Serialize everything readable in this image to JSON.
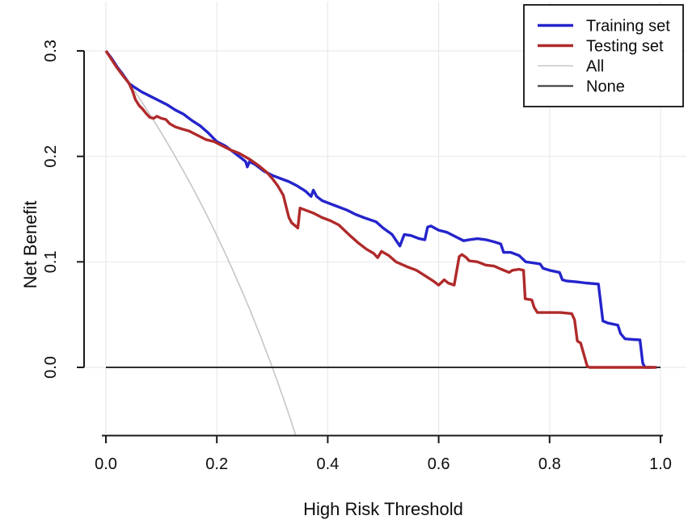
{
  "figure": {
    "background": "#ffffff",
    "grid_color": "#e9e9e9",
    "axis_color": "#1a1a1a",
    "text_color": "#0c0c0c"
  },
  "legend": {
    "position": "top-right",
    "items": [
      {
        "label": "Training set",
        "color": "#2424cc",
        "line_width": 3.4
      },
      {
        "label": "Testing set",
        "color": "#b02a2a",
        "line_width": 3.4
      },
      {
        "label": "All",
        "color": "#c6c6c6",
        "line_width": 1.6
      },
      {
        "label": "None",
        "color": "#2e2e2e",
        "line_width": 2.0
      }
    ]
  },
  "chart_data": {
    "type": "line",
    "title": "",
    "xlabel": "High Risk Threshold",
    "ylabel": "Net Benefit",
    "xlim": [
      0.0,
      1.0
    ],
    "ylim": [
      -0.064,
      0.34
    ],
    "x_tick_values": [
      0.0,
      0.2,
      0.4,
      0.6,
      0.8,
      1.0
    ],
    "x_tick_labels": [
      "0.0",
      "0.2",
      "0.4",
      "0.6",
      "0.8",
      "1.0"
    ],
    "y_tick_values": [
      0.0,
      0.1,
      0.2,
      0.3
    ],
    "y_tick_labels": [
      "0.0",
      "0.1",
      "0.2",
      "0.3"
    ],
    "grid": true,
    "legend_position": "top-right",
    "series": [
      {
        "name": "All",
        "color": "#c6c6c6",
        "width": 1.6,
        "points": [
          [
            0.0,
            0.3
          ],
          [
            0.02,
            0.2857
          ],
          [
            0.04,
            0.2708
          ],
          [
            0.06,
            0.2553
          ],
          [
            0.08,
            0.2391
          ],
          [
            0.1,
            0.2222
          ],
          [
            0.12,
            0.2045
          ],
          [
            0.14,
            0.186
          ],
          [
            0.16,
            0.1667
          ],
          [
            0.18,
            0.1463
          ],
          [
            0.2,
            0.125
          ],
          [
            0.22,
            0.1026
          ],
          [
            0.24,
            0.0789
          ],
          [
            0.26,
            0.0541
          ],
          [
            0.28,
            0.0278
          ],
          [
            0.3,
            0.0
          ],
          [
            0.31,
            -0.0145
          ],
          [
            0.32,
            -0.0294
          ],
          [
            0.33,
            -0.0448
          ],
          [
            0.342,
            -0.064
          ]
        ]
      },
      {
        "name": "None",
        "color": "#2e2e2e",
        "width": 2.0,
        "points": [
          [
            0.0,
            0.0
          ],
          [
            1.0,
            0.0
          ]
        ]
      },
      {
        "name": "Training set",
        "color": "#2424cc",
        "width": 3.4,
        "points": [
          [
            0.0,
            0.3
          ],
          [
            0.01,
            0.293
          ],
          [
            0.02,
            0.285
          ],
          [
            0.03,
            0.278
          ],
          [
            0.042,
            0.269
          ],
          [
            0.05,
            0.266
          ],
          [
            0.065,
            0.261
          ],
          [
            0.08,
            0.257
          ],
          [
            0.095,
            0.253
          ],
          [
            0.11,
            0.249
          ],
          [
            0.125,
            0.244
          ],
          [
            0.14,
            0.24
          ],
          [
            0.155,
            0.234
          ],
          [
            0.17,
            0.229
          ],
          [
            0.185,
            0.222
          ],
          [
            0.2,
            0.214
          ],
          [
            0.215,
            0.21
          ],
          [
            0.23,
            0.204
          ],
          [
            0.245,
            0.198
          ],
          [
            0.252,
            0.195
          ],
          [
            0.255,
            0.19
          ],
          [
            0.259,
            0.195
          ],
          [
            0.27,
            0.192
          ],
          [
            0.285,
            0.186
          ],
          [
            0.3,
            0.182
          ],
          [
            0.315,
            0.179
          ],
          [
            0.33,
            0.176
          ],
          [
            0.345,
            0.172
          ],
          [
            0.36,
            0.167
          ],
          [
            0.37,
            0.162
          ],
          [
            0.374,
            0.168
          ],
          [
            0.38,
            0.162
          ],
          [
            0.39,
            0.158
          ],
          [
            0.405,
            0.155
          ],
          [
            0.42,
            0.152
          ],
          [
            0.435,
            0.149
          ],
          [
            0.45,
            0.145
          ],
          [
            0.465,
            0.142
          ],
          [
            0.487,
            0.138
          ],
          [
            0.5,
            0.132
          ],
          [
            0.516,
            0.126
          ],
          [
            0.53,
            0.115
          ],
          [
            0.538,
            0.126
          ],
          [
            0.55,
            0.125
          ],
          [
            0.565,
            0.122
          ],
          [
            0.575,
            0.121
          ],
          [
            0.58,
            0.133
          ],
          [
            0.586,
            0.134
          ],
          [
            0.6,
            0.13
          ],
          [
            0.615,
            0.128
          ],
          [
            0.63,
            0.124
          ],
          [
            0.645,
            0.12
          ],
          [
            0.655,
            0.121
          ],
          [
            0.67,
            0.122
          ],
          [
            0.685,
            0.121
          ],
          [
            0.7,
            0.119
          ],
          [
            0.712,
            0.117
          ],
          [
            0.717,
            0.109
          ],
          [
            0.73,
            0.109
          ],
          [
            0.745,
            0.106
          ],
          [
            0.757,
            0.1
          ],
          [
            0.77,
            0.099
          ],
          [
            0.783,
            0.098
          ],
          [
            0.788,
            0.094
          ],
          [
            0.8,
            0.092
          ],
          [
            0.818,
            0.09
          ],
          [
            0.823,
            0.083
          ],
          [
            0.83,
            0.082
          ],
          [
            0.85,
            0.081
          ],
          [
            0.865,
            0.08
          ],
          [
            0.888,
            0.079
          ],
          [
            0.896,
            0.044
          ],
          [
            0.905,
            0.042
          ],
          [
            0.923,
            0.04
          ],
          [
            0.928,
            0.032
          ],
          [
            0.936,
            0.027
          ],
          [
            0.95,
            0.0265
          ],
          [
            0.963,
            0.026
          ],
          [
            0.968,
            0.004
          ],
          [
            0.972,
            0.0
          ],
          [
            0.985,
            0.0
          ]
        ]
      },
      {
        "name": "Testing set",
        "color": "#b02a2a",
        "width": 3.4,
        "points": [
          [
            0.0,
            0.3
          ],
          [
            0.01,
            0.292
          ],
          [
            0.02,
            0.284
          ],
          [
            0.03,
            0.277
          ],
          [
            0.042,
            0.269
          ],
          [
            0.048,
            0.262
          ],
          [
            0.053,
            0.254
          ],
          [
            0.06,
            0.248
          ],
          [
            0.066,
            0.245
          ],
          [
            0.072,
            0.241
          ],
          [
            0.079,
            0.237
          ],
          [
            0.086,
            0.236
          ],
          [
            0.092,
            0.238
          ],
          [
            0.1,
            0.236
          ],
          [
            0.108,
            0.235
          ],
          [
            0.115,
            0.231
          ],
          [
            0.125,
            0.228
          ],
          [
            0.137,
            0.226
          ],
          [
            0.15,
            0.224
          ],
          [
            0.165,
            0.22
          ],
          [
            0.18,
            0.216
          ],
          [
            0.195,
            0.214
          ],
          [
            0.21,
            0.21
          ],
          [
            0.225,
            0.206
          ],
          [
            0.24,
            0.203
          ],
          [
            0.26,
            0.197
          ],
          [
            0.276,
            0.191
          ],
          [
            0.29,
            0.185
          ],
          [
            0.3,
            0.179
          ],
          [
            0.31,
            0.172
          ],
          [
            0.32,
            0.163
          ],
          [
            0.325,
            0.152
          ],
          [
            0.33,
            0.142
          ],
          [
            0.335,
            0.137
          ],
          [
            0.342,
            0.134
          ],
          [
            0.346,
            0.132
          ],
          [
            0.35,
            0.151
          ],
          [
            0.36,
            0.149
          ],
          [
            0.375,
            0.146
          ],
          [
            0.39,
            0.142
          ],
          [
            0.405,
            0.139
          ],
          [
            0.42,
            0.135
          ],
          [
            0.44,
            0.125
          ],
          [
            0.455,
            0.118
          ],
          [
            0.47,
            0.112
          ],
          [
            0.483,
            0.108
          ],
          [
            0.49,
            0.104
          ],
          [
            0.497,
            0.11
          ],
          [
            0.51,
            0.106
          ],
          [
            0.523,
            0.1
          ],
          [
            0.545,
            0.095
          ],
          [
            0.56,
            0.092
          ],
          [
            0.575,
            0.087
          ],
          [
            0.59,
            0.082
          ],
          [
            0.6,
            0.078
          ],
          [
            0.61,
            0.083
          ],
          [
            0.617,
            0.08
          ],
          [
            0.628,
            0.078
          ],
          [
            0.637,
            0.105
          ],
          [
            0.642,
            0.107
          ],
          [
            0.65,
            0.104
          ],
          [
            0.655,
            0.101
          ],
          [
            0.67,
            0.1
          ],
          [
            0.685,
            0.097
          ],
          [
            0.7,
            0.096
          ],
          [
            0.713,
            0.093
          ],
          [
            0.727,
            0.09
          ],
          [
            0.733,
            0.092
          ],
          [
            0.745,
            0.093
          ],
          [
            0.753,
            0.092
          ],
          [
            0.756,
            0.065
          ],
          [
            0.768,
            0.064
          ],
          [
            0.772,
            0.057
          ],
          [
            0.778,
            0.052
          ],
          [
            0.8,
            0.052
          ],
          [
            0.82,
            0.052
          ],
          [
            0.84,
            0.051
          ],
          [
            0.845,
            0.045
          ],
          [
            0.85,
            0.025
          ],
          [
            0.856,
            0.023
          ],
          [
            0.862,
            0.012
          ],
          [
            0.868,
            0.001
          ],
          [
            0.872,
            0.0
          ],
          [
            0.993,
            0.0
          ]
        ]
      }
    ]
  }
}
